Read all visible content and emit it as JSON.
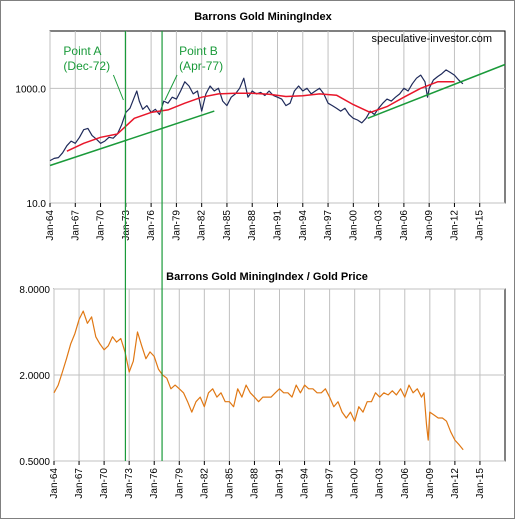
{
  "chart_data": [
    {
      "type": "line",
      "title": "Barrons Gold MiningIndex",
      "watermark": "speculative-investor.com",
      "scale": "log",
      "ylim": [
        10,
        10000
      ],
      "y_ticks": [
        "10.0",
        "1000.0"
      ],
      "y_tick_values": [
        10,
        1000
      ],
      "x_ticks": [
        "Jan-64",
        "Jan-67",
        "Jan-70",
        "Jan-73",
        "Jan-76",
        "Jan-79",
        "Jan-82",
        "Jan-85",
        "Jan-88",
        "Jan-91",
        "Jan-94",
        "Jan-97",
        "Jan-00",
        "Jan-03",
        "Jan-06",
        "Jan-09",
        "Jan-12",
        "Jan-15"
      ],
      "xlim": [
        1964,
        2018
      ],
      "grid": true,
      "annotations": [
        {
          "title": "Point A",
          "date": "(Dec-72)",
          "x": 1972.95
        },
        {
          "title": "Point B",
          "date": "(Apr-77)",
          "x": 1977.3
        }
      ],
      "series": [
        {
          "color": "#1f2a5a",
          "x": [
            1964,
            1964.5,
            1965,
            1965.5,
            1966,
            1966.5,
            1967,
            1967.5,
            1968,
            1968.5,
            1969,
            1969.5,
            1970,
            1970.5,
            1971,
            1971.5,
            1972,
            1972.5,
            1973,
            1973.5,
            1974,
            1974.3,
            1974.6,
            1975,
            1975.5,
            1976,
            1976.5,
            1977,
            1977.5,
            1978,
            1978.5,
            1979,
            1979.5,
            1980,
            1980.5,
            1981,
            1981.5,
            1982,
            1982.5,
            1983,
            1983.5,
            1984,
            1984.5,
            1985,
            1985.5,
            1986,
            1986.5,
            1987,
            1987.5,
            1988,
            1988.5,
            1989,
            1989.5,
            1990,
            1990.5,
            1991,
            1991.5,
            1992,
            1992.5,
            1993,
            1993.5,
            1994,
            1994.5,
            1995,
            1995.5,
            1996,
            1996.5,
            1997,
            1997.5,
            1998,
            1998.5,
            1999,
            1999.5,
            2000,
            2000.5,
            2001,
            2001.5,
            2002,
            2002.5,
            2003,
            2003.5,
            2004,
            2004.5,
            2005,
            2005.5,
            2006,
            2006.5,
            2007,
            2007.5,
            2008,
            2008.5,
            2008.8,
            2009,
            2009.5,
            2010,
            2010.5,
            2011,
            2011.5,
            2012,
            2012.5,
            2013
          ],
          "y": [
            55,
            60,
            62,
            75,
            100,
            120,
            110,
            140,
            190,
            200,
            150,
            130,
            110,
            120,
            140,
            135,
            160,
            230,
            380,
            450,
            700,
            900,
            600,
            430,
            500,
            380,
            430,
            350,
            600,
            550,
            700,
            650,
            900,
            1300,
            1100,
            800,
            900,
            400,
            800,
            1100,
            900,
            1000,
            600,
            500,
            700,
            800,
            1000,
            1500,
            700,
            900,
            800,
            850,
            750,
            900,
            750,
            700,
            650,
            500,
            550,
            900,
            1100,
            900,
            1000,
            800,
            900,
            1000,
            800,
            550,
            500,
            450,
            400,
            450,
            350,
            300,
            280,
            250,
            300,
            400,
            350,
            450,
            550,
            650,
            600,
            700,
            800,
            1000,
            900,
            1200,
            1500,
            1700,
            1300,
            700,
            1000,
            1400,
            1600,
            1800,
            2100,
            1900,
            1700,
            1400,
            1200
          ]
        },
        {
          "color": "#e8162a",
          "x": [
            1966,
            1968,
            1970,
            1972,
            1974,
            1976,
            1978,
            1980,
            1982,
            1984,
            1986,
            1988,
            1990,
            1992,
            1994,
            1996,
            1998,
            2000,
            2002,
            2004,
            2006,
            2008,
            2010,
            2012
          ],
          "y": [
            80,
            110,
            140,
            160,
            300,
            380,
            420,
            550,
            700,
            800,
            820,
            820,
            790,
            720,
            740,
            800,
            760,
            520,
            380,
            480,
            700,
            1000,
            1300,
            1300
          ]
        },
        {
          "color": "#1a9a3a",
          "x": [
            1964,
            1983.5
          ],
          "y": [
            45,
            400
          ]
        },
        {
          "color": "#1a9a3a",
          "x": [
            2001.7,
            2018
          ],
          "y": [
            300,
            2600
          ]
        }
      ]
    },
    {
      "type": "line",
      "title": "Barrons Gold MiningIndex / Gold Price",
      "scale": "log",
      "ylim": [
        0.5,
        8
      ],
      "y_ticks": [
        "0.5000",
        "2.0000",
        "8.0000"
      ],
      "y_tick_values": [
        0.5,
        2,
        8
      ],
      "x_ticks": [
        "Jan-64",
        "Jan-67",
        "Jan-70",
        "Jan-73",
        "Jan-76",
        "Jan-79",
        "Jan-82",
        "Jan-85",
        "Jan-88",
        "Jan-91",
        "Jan-94",
        "Jan-97",
        "Jan-00",
        "Jan-03",
        "Jan-06",
        "Jan-09",
        "Jan-12",
        "Jan-15"
      ],
      "xlim": [
        1964,
        2018
      ],
      "grid": true,
      "series": [
        {
          "color": "#e07814",
          "x": [
            1964,
            1964.5,
            1965,
            1965.5,
            1966,
            1966.5,
            1967,
            1967.5,
            1968,
            1968.5,
            1969,
            1969.5,
            1970,
            1970.5,
            1971,
            1971.5,
            1972,
            1972.5,
            1973,
            1973.5,
            1974,
            1974.5,
            1975,
            1975.5,
            1976,
            1976.5,
            1977,
            1977.5,
            1978,
            1978.5,
            1979,
            1979.5,
            1980,
            1980.5,
            1981,
            1981.5,
            1982,
            1982.5,
            1983,
            1983.5,
            1984,
            1984.5,
            1985,
            1985.5,
            1986,
            1986.5,
            1987,
            1987.5,
            1988,
            1988.5,
            1989,
            1989.5,
            1990,
            1990.5,
            1991,
            1991.5,
            1992,
            1992.5,
            1993,
            1993.5,
            1994,
            1994.5,
            1995,
            1995.5,
            1996,
            1996.5,
            1997,
            1997.5,
            1998,
            1998.5,
            1999,
            1999.5,
            2000,
            2000.5,
            2001,
            2001.5,
            2002,
            2002.5,
            2003,
            2003.5,
            2004,
            2004.5,
            2005,
            2005.5,
            2006,
            2006.5,
            2007,
            2007.5,
            2008,
            2008.3,
            2008.6,
            2008.8,
            2009,
            2009.5,
            2010,
            2010.5,
            2011,
            2011.5,
            2012,
            2012.5,
            2013
          ],
          "y": [
            1.5,
            1.7,
            2.1,
            2.6,
            3.3,
            3.9,
            4.9,
            5.6,
            4.6,
            5.1,
            3.7,
            3.3,
            3.0,
            3.2,
            3.7,
            3.4,
            3.6,
            2.9,
            2.1,
            2.5,
            4.0,
            3.2,
            2.6,
            2.9,
            2.7,
            2.2,
            2.0,
            1.9,
            1.6,
            1.7,
            1.6,
            1.5,
            1.3,
            1.1,
            1.3,
            1.4,
            1.2,
            1.5,
            1.6,
            1.4,
            1.5,
            1.3,
            1.3,
            1.2,
            1.6,
            1.4,
            1.7,
            1.5,
            1.4,
            1.3,
            1.4,
            1.4,
            1.4,
            1.5,
            1.6,
            1.5,
            1.5,
            1.4,
            1.7,
            1.5,
            1.7,
            1.6,
            1.6,
            1.5,
            1.5,
            1.6,
            1.4,
            1.2,
            1.3,
            1.1,
            1.0,
            1.1,
            0.95,
            1.2,
            1.1,
            1.3,
            1.3,
            1.5,
            1.4,
            1.5,
            1.45,
            1.55,
            1.45,
            1.6,
            1.4,
            1.7,
            1.5,
            1.6,
            1.4,
            1.5,
            0.9,
            0.7,
            1.1,
            1.05,
            1.0,
            1.0,
            0.95,
            0.8,
            0.7,
            0.65,
            0.6
          ]
        }
      ]
    }
  ]
}
